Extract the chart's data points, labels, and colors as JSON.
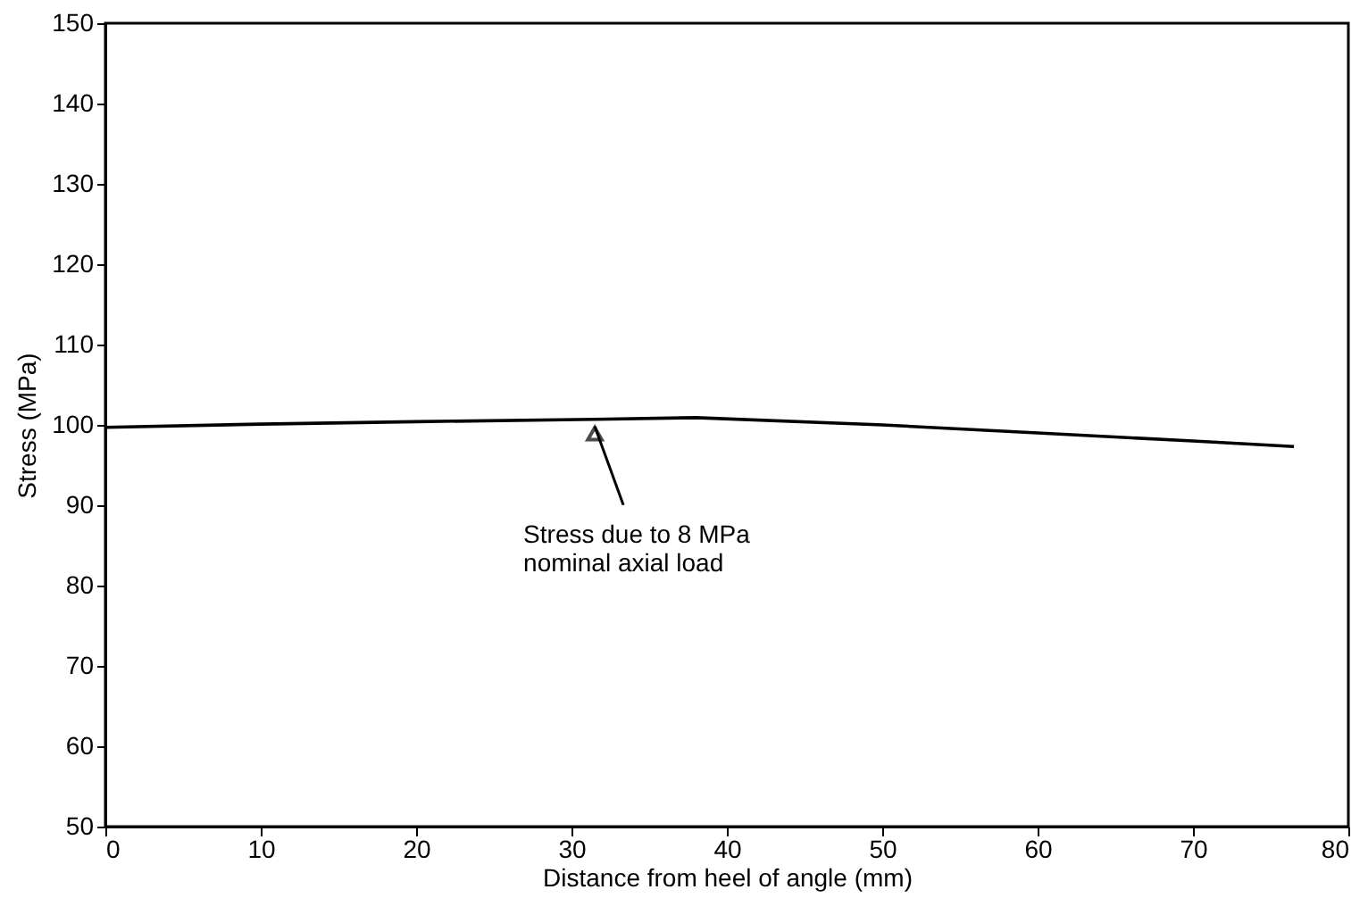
{
  "chart_data": {
    "type": "line",
    "xlabel": "Distance from heel of angle (mm)",
    "ylabel": "Stress (MPa)",
    "x": [
      0,
      10,
      20,
      31.5,
      38,
      50,
      60,
      70,
      76.5
    ],
    "series": [
      {
        "color": "#000000",
        "values": [
          99.7,
          100.1,
          100.4,
          100.7,
          100.9,
          100,
          99,
          98,
          97.3
        ]
      }
    ],
    "xlim": [
      0,
      80
    ],
    "xticks": [
      0,
      10,
      20,
      30,
      40,
      50,
      60,
      70,
      80
    ],
    "ylim": [
      50,
      150
    ],
    "yticks": [
      50,
      60,
      70,
      80,
      90,
      100,
      110,
      120,
      130,
      140,
      150
    ],
    "grid": false,
    "line_style": "solid",
    "annotations": [
      {
        "text": "Stress due to 8 MPa\nnominal axial load",
        "x": 31.5,
        "y": 100.7
      }
    ]
  }
}
